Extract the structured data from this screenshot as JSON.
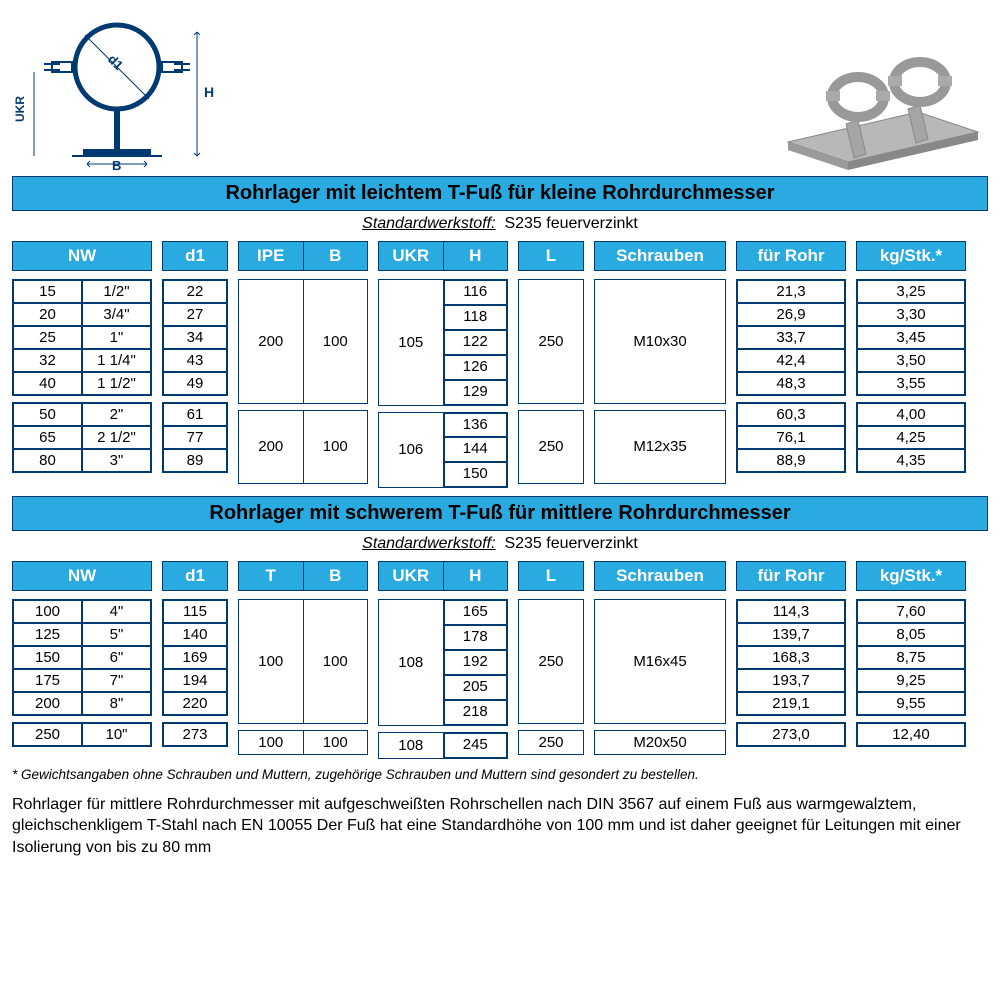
{
  "colors": {
    "header_bg": "#29abe2",
    "border": "#003a70"
  },
  "section1": {
    "title": "Rohrlager mit leichtem T-Fuß für kleine Rohrdurchmesser",
    "subtitle_label": "Standardwerkstoff:",
    "subtitle_value": "S235 feuerverzinkt",
    "headers": {
      "nw": "NW",
      "d1": "d1",
      "ipe": "IPE",
      "b": "B",
      "ukr": "UKR",
      "h": "H",
      "l": "L",
      "schrauben": "Schrauben",
      "rohr": "für Rohr",
      "kg": "kg/Stk.*"
    },
    "groups": [
      {
        "ipe": "200",
        "b": "100",
        "ukr": "105",
        "l": "250",
        "schrauben": "M10x30",
        "rows": [
          {
            "nw1": "15",
            "nw2": "1/2\"",
            "d1": "22",
            "h": "116",
            "rohr": "21,3",
            "kg": "3,25"
          },
          {
            "nw1": "20",
            "nw2": "3/4\"",
            "d1": "27",
            "h": "118",
            "rohr": "26,9",
            "kg": "3,30"
          },
          {
            "nw1": "25",
            "nw2": "1\"",
            "d1": "34",
            "h": "122",
            "rohr": "33,7",
            "kg": "3,45"
          },
          {
            "nw1": "32",
            "nw2": "1 1/4\"",
            "d1": "43",
            "h": "126",
            "rohr": "42,4",
            "kg": "3,50"
          },
          {
            "nw1": "40",
            "nw2": "1 1/2\"",
            "d1": "49",
            "h": "129",
            "rohr": "48,3",
            "kg": "3,55"
          }
        ]
      },
      {
        "ipe": "200",
        "b": "100",
        "ukr": "106",
        "l": "250",
        "schrauben": "M12x35",
        "rows": [
          {
            "nw1": "50",
            "nw2": "2\"",
            "d1": "61",
            "h": "136",
            "rohr": "60,3",
            "kg": "4,00"
          },
          {
            "nw1": "65",
            "nw2": "2 1/2\"",
            "d1": "77",
            "h": "144",
            "rohr": "76,1",
            "kg": "4,25"
          },
          {
            "nw1": "80",
            "nw2": "3\"",
            "d1": "89",
            "h": "150",
            "rohr": "88,9",
            "kg": "4,35"
          }
        ]
      }
    ]
  },
  "section2": {
    "title": "Rohrlager mit schwerem T-Fuß für mittlere Rohrdurchmesser",
    "subtitle_label": "Standardwerkstoff:",
    "subtitle_value": "S235 feuerverzinkt",
    "headers": {
      "nw": "NW",
      "d1": "d1",
      "t": "T",
      "b": "B",
      "ukr": "UKR",
      "h": "H",
      "l": "L",
      "schrauben": "Schrauben",
      "rohr": "für Rohr",
      "kg": "kg/Stk.*"
    },
    "groups": [
      {
        "t": "100",
        "b": "100",
        "ukr": "108",
        "l": "250",
        "schrauben": "M16x45",
        "rows": [
          {
            "nw1": "100",
            "nw2": "4\"",
            "d1": "115",
            "h": "165",
            "rohr": "114,3",
            "kg": "7,60"
          },
          {
            "nw1": "125",
            "nw2": "5\"",
            "d1": "140",
            "h": "178",
            "rohr": "139,7",
            "kg": "8,05"
          },
          {
            "nw1": "150",
            "nw2": "6\"",
            "d1": "169",
            "h": "192",
            "rohr": "168,3",
            "kg": "8,75"
          },
          {
            "nw1": "175",
            "nw2": "7\"",
            "d1": "194",
            "h": "205",
            "rohr": "193,7",
            "kg": "9,25"
          },
          {
            "nw1": "200",
            "nw2": "8\"",
            "d1": "220",
            "h": "218",
            "rohr": "219,1",
            "kg": "9,55"
          }
        ]
      },
      {
        "t": "100",
        "b": "100",
        "ukr": "108",
        "l": "250",
        "schrauben": "M20x50",
        "rows": [
          {
            "nw1": "250",
            "nw2": "10\"",
            "d1": "273",
            "h": "245",
            "rohr": "273,0",
            "kg": "12,40"
          }
        ]
      }
    ]
  },
  "footnote": "* Gewichtsangaben ohne Schrauben und Muttern, zugehörige Schrauben und Muttern sind gesondert zu bestellen.",
  "description": "Rohrlager für mittlere Rohrdurchmesser mit aufgeschweißten Rohrschellen nach DIN 3567 auf einem Fuß aus warmgewalztem, gleichschenkligem T-Stahl nach EN 10055 Der Fuß hat eine Standardhöhe von 100 mm und ist daher geeignet für Leitungen mit einer Isolierung von bis zu 80 mm",
  "diagram_labels": {
    "d1": "d1",
    "ukr": "UKR",
    "h": "H",
    "b": "B"
  },
  "col_widths": {
    "nw": 140,
    "d1": 66,
    "ipeb": 130,
    "ukrh": 130,
    "l": 66,
    "schrauben": 132,
    "rohr": 110,
    "kg": 110
  }
}
